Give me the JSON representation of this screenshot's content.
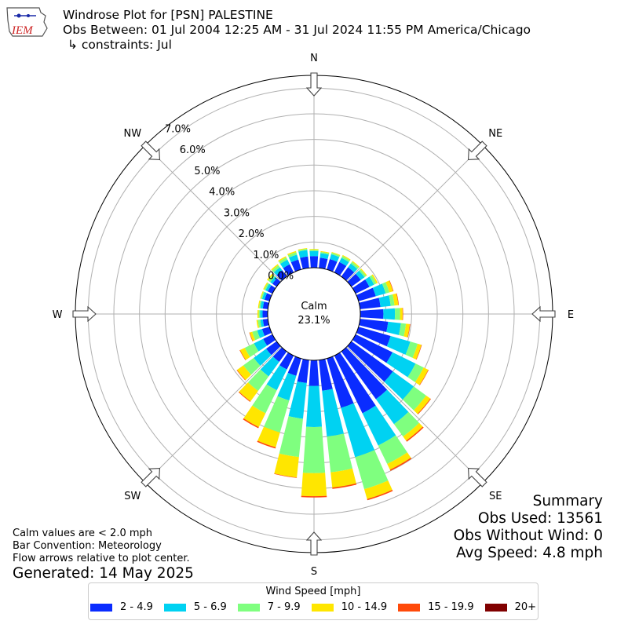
{
  "header": {
    "title": "Windrose Plot for [PSN] PALESTINE",
    "obs_between": "Obs Between: 01 Jul 2004 12:25 AM - 31 Jul 2024 11:55 PM America/Chicago",
    "constraints": "↳ constraints: Jul"
  },
  "logo": {
    "text": "IEM",
    "color": "#cc2222",
    "icon": "iowa-state-outline-logo"
  },
  "summary": {
    "title": "Summary",
    "obs_used": "Obs Used: 13561",
    "obs_without_wind": "Obs Without Wind: 0",
    "avg_speed": "Avg Speed: 4.8 mph"
  },
  "notes": {
    "calm_note": "Calm values are < 2.0 mph",
    "bar_convention": "Bar Convention: Meteorology",
    "flow_note": "Flow arrows relative to plot center.",
    "generated": "Generated: 14 May 2025"
  },
  "chart_data": {
    "type": "windrose",
    "calm_label": "Calm",
    "calm_value": "23.1%",
    "calm_fraction": 0.231,
    "radial_ticks": [
      "0.0%",
      "1.0%",
      "2.0%",
      "3.0%",
      "4.0%",
      "5.0%",
      "6.0%",
      "7.0%"
    ],
    "radial_max": 7.5,
    "cardinal_labels": [
      "N",
      "NE",
      "E",
      "SE",
      "S",
      "SW",
      "W",
      "NW"
    ],
    "bar_convention": "Meteorology",
    "legend_title": "Wind Speed [mph]",
    "bins": [
      "2 - 4.9",
      "5 - 6.9",
      "7 - 9.9",
      "10 - 14.9",
      "15 - 19.9",
      "20+"
    ],
    "bin_colors": [
      "#0a2cff",
      "#00d2f2",
      "#7fff7f",
      "#ffe600",
      "#ff4a0a",
      "#800000"
    ],
    "directions_deg": [
      0,
      10,
      20,
      30,
      40,
      50,
      60,
      70,
      80,
      90,
      100,
      110,
      120,
      130,
      140,
      150,
      160,
      170,
      180,
      190,
      200,
      210,
      220,
      230,
      240,
      250,
      260,
      270,
      280,
      290,
      300,
      310,
      320,
      330,
      340,
      350
    ],
    "values": [
      [
        0.45,
        0.2,
        0.05,
        0.03,
        0.0,
        0.0
      ],
      [
        0.4,
        0.18,
        0.05,
        0.03,
        0.0,
        0.0
      ],
      [
        0.42,
        0.2,
        0.06,
        0.03,
        0.0,
        0.0
      ],
      [
        0.45,
        0.18,
        0.08,
        0.04,
        0.0,
        0.0
      ],
      [
        0.45,
        0.18,
        0.08,
        0.04,
        0.0,
        0.0
      ],
      [
        0.45,
        0.18,
        0.08,
        0.04,
        0.0,
        0.0
      ],
      [
        0.6,
        0.2,
        0.1,
        0.06,
        0.0,
        0.0
      ],
      [
        0.7,
        0.4,
        0.15,
        0.15,
        0.02,
        0.0
      ],
      [
        0.8,
        0.4,
        0.15,
        0.15,
        0.02,
        0.0
      ],
      [
        0.9,
        0.45,
        0.2,
        0.1,
        0.02,
        0.0
      ],
      [
        1.1,
        0.5,
        0.2,
        0.15,
        0.02,
        0.0
      ],
      [
        1.3,
        0.8,
        0.3,
        0.15,
        0.02,
        0.0
      ],
      [
        1.6,
        1.0,
        0.35,
        0.2,
        0.02,
        0.0
      ],
      [
        2.0,
        1.0,
        0.6,
        0.2,
        0.03,
        0.0
      ],
      [
        2.3,
        1.2,
        0.6,
        0.2,
        0.05,
        0.0
      ],
      [
        2.5,
        1.4,
        0.8,
        0.25,
        0.05,
        0.0
      ],
      [
        2.0,
        2.0,
        1.3,
        0.4,
        0.05,
        0.0
      ],
      [
        1.2,
        1.8,
        1.4,
        0.6,
        0.05,
        0.0
      ],
      [
        1.0,
        1.6,
        1.8,
        0.9,
        0.05,
        0.0
      ],
      [
        0.9,
        1.4,
        1.5,
        0.8,
        0.02,
        0.0
      ],
      [
        0.7,
        1.0,
        1.3,
        0.6,
        0.05,
        0.0
      ],
      [
        0.6,
        0.9,
        1.0,
        0.6,
        0.05,
        0.0
      ],
      [
        0.5,
        0.7,
        0.7,
        0.5,
        0.03,
        0.0
      ],
      [
        0.5,
        0.6,
        0.5,
        0.3,
        0.02,
        0.0
      ],
      [
        0.4,
        0.4,
        0.4,
        0.2,
        0.02,
        0.0
      ],
      [
        0.3,
        0.2,
        0.2,
        0.1,
        0.02,
        0.0
      ],
      [
        0.2,
        0.1,
        0.1,
        0.05,
        0.0,
        0.0
      ],
      [
        0.2,
        0.1,
        0.05,
        0.05,
        0.0,
        0.0
      ],
      [
        0.2,
        0.1,
        0.05,
        0.04,
        0.0,
        0.0
      ],
      [
        0.2,
        0.1,
        0.05,
        0.03,
        0.0,
        0.0
      ],
      [
        0.2,
        0.1,
        0.06,
        0.04,
        0.0,
        0.0
      ],
      [
        0.2,
        0.1,
        0.1,
        0.06,
        0.0,
        0.0
      ],
      [
        0.3,
        0.15,
        0.1,
        0.05,
        0.0,
        0.0
      ],
      [
        0.35,
        0.2,
        0.1,
        0.05,
        0.0,
        0.0
      ],
      [
        0.4,
        0.2,
        0.1,
        0.05,
        0.0,
        0.0
      ],
      [
        0.45,
        0.25,
        0.05,
        0.03,
        0.0,
        0.0
      ]
    ]
  }
}
